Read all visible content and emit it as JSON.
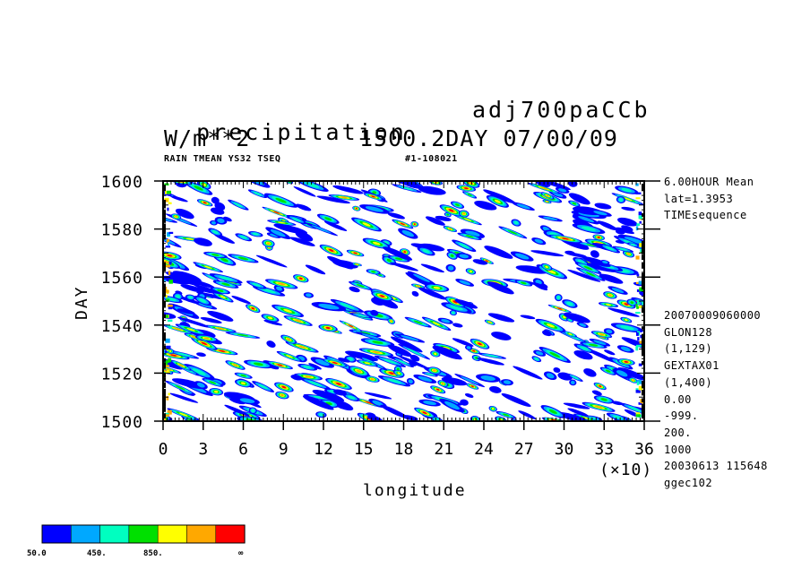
{
  "header": {
    "title_left": "precipitation",
    "title_right": "adj700paCCb",
    "unit": "W/m**2",
    "time_info": "1500.2DAY 07/00/09",
    "subtitle_left": "RAIN TMEAN YS32 TSEQ",
    "subtitle_right": "#1-108021"
  },
  "side_info": {
    "top": [
      "6.00HOUR Mean",
      "lat=1.3953",
      "TIMEsequence"
    ],
    "bottom": [
      "20070009060000",
      "GLON128",
      "(1,129)",
      "GEXTAX01",
      "(1,400)",
      "0.00",
      "-999.",
      "200.",
      "1000",
      "20030613 115648",
      "ggec102"
    ]
  },
  "colorbar": {
    "colors": [
      "#0000ff",
      "#00a8ff",
      "#00ffc0",
      "#00e000",
      "#ffff00",
      "#ffa800",
      "#ff0000"
    ],
    "labels": [
      "50.0",
      "450.",
      "850.",
      "∞"
    ]
  },
  "chart_data": {
    "type": "heatmap",
    "xlabel": "longitude",
    "ylabel": "DAY",
    "x_unit": "(×10)",
    "x_ticks": [
      "0",
      "3",
      "6",
      "9",
      "12",
      "15",
      "18",
      "21",
      "24",
      "27",
      "30",
      "33",
      "36"
    ],
    "y_ticks": [
      "1500",
      "1520",
      "1540",
      "1560",
      "1580",
      "1600"
    ],
    "xlim": [
      0,
      360
    ],
    "ylim": [
      1500,
      1600
    ],
    "contour_levels": [
      50,
      250,
      450,
      650,
      850,
      1050
    ],
    "description_values": "longitude-time (Hovmoller) diagram of precipitation; scattered westward-tilted patches of rain intensity 50-1250 W/m**2"
  }
}
